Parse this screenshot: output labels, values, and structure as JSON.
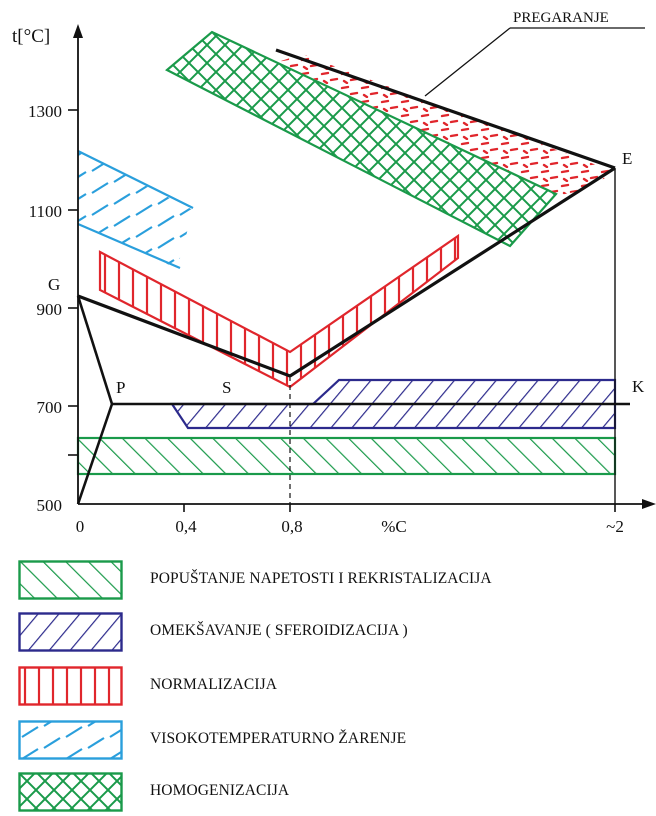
{
  "diagram": {
    "y_axis_label": "t[°C]",
    "x_axis_label": "%C",
    "y_ticks": [
      "1300",
      "1100",
      "900",
      "700",
      "500"
    ],
    "x_ticks": [
      "0",
      "0,4",
      "0,8",
      "~2"
    ],
    "points": {
      "g": "G",
      "p": "P",
      "s": "S",
      "e": "E",
      "k": "K"
    },
    "callout": "PREGARANJE"
  },
  "legend": [
    {
      "label": "POPUŠTANJE NAPETOSTI I REKRISTALIZACIJA",
      "color": "#1a9a4a",
      "pattern": "diagonal-forward"
    },
    {
      "label": "OMEKŠAVANJE  ( SFEROIDIZACIJA )",
      "color": "#2c2a8c",
      "pattern": "diagonal-backward"
    },
    {
      "label": "NORMALIZACIJA",
      "color": "#e0262c",
      "pattern": "vertical"
    },
    {
      "label": "VISOKOTEMPERATURNO ŽARENJE",
      "color": "#2a9fdc",
      "pattern": "dashed-diagonal"
    },
    {
      "label": "HOMOGENIZACIJA",
      "color": "#1a9a4a",
      "pattern": "cross-hatch"
    }
  ]
}
